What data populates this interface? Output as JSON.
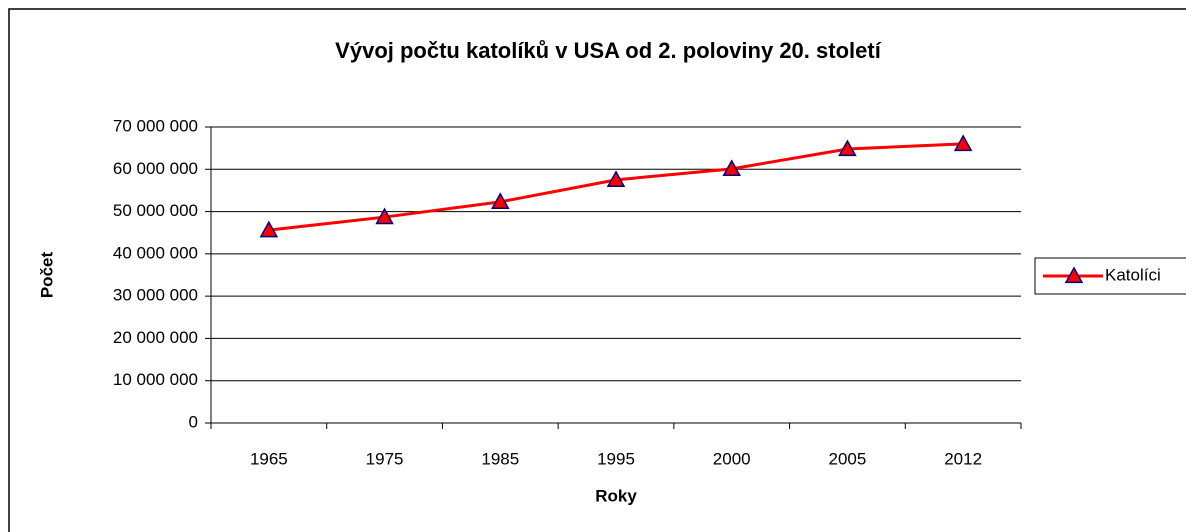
{
  "chart_data": {
    "type": "line",
    "title": "Vývoj počtu katolíků v USA od 2. poloviny 20. století",
    "x_label": "Roky",
    "y_label": "Počet",
    "categories": [
      "1965",
      "1975",
      "1985",
      "1995",
      "2000",
      "2005",
      "2012"
    ],
    "series": [
      {
        "name": "Katolíci",
        "color": "#ff0000",
        "marker_color": "#ff0000",
        "marker_edge": "#000080",
        "values": [
          45600000,
          48700000,
          52300000,
          57500000,
          60100000,
          64800000,
          66000000
        ]
      }
    ],
    "ylim": [
      0,
      70000000
    ],
    "yticks": [
      {
        "value": 0,
        "label": "0"
      },
      {
        "value": 10000000,
        "label": "10 000 000"
      },
      {
        "value": 20000000,
        "label": "20 000 000"
      },
      {
        "value": 30000000,
        "label": "30 000 000"
      },
      {
        "value": 40000000,
        "label": "40 000 000"
      },
      {
        "value": 50000000,
        "label": "50 000 000"
      },
      {
        "value": 60000000,
        "label": "60 000 000"
      },
      {
        "value": 70000000,
        "label": "70 000 000"
      }
    ],
    "grid": true,
    "legend": "right"
  }
}
